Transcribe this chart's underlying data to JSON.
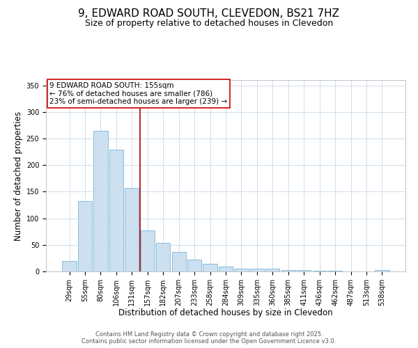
{
  "title": "9, EDWARD ROAD SOUTH, CLEVEDON, BS21 7HZ",
  "subtitle": "Size of property relative to detached houses in Clevedon",
  "xlabel": "Distribution of detached houses by size in Clevedon",
  "ylabel": "Number of detached properties",
  "bar_labels": [
    "29sqm",
    "55sqm",
    "80sqm",
    "106sqm",
    "131sqm",
    "157sqm",
    "182sqm",
    "207sqm",
    "233sqm",
    "258sqm",
    "284sqm",
    "309sqm",
    "335sqm",
    "360sqm",
    "385sqm",
    "411sqm",
    "436sqm",
    "462sqm",
    "487sqm",
    "513sqm",
    "538sqm"
  ],
  "bar_values": [
    20,
    132,
    265,
    229,
    157,
    77,
    54,
    37,
    22,
    14,
    9,
    5,
    5,
    5,
    3,
    2,
    1,
    1,
    0,
    0,
    2
  ],
  "bar_color": "#cce0f0",
  "bar_edge_color": "#7ab4d8",
  "vline_x": 5,
  "vline_color": "#aa0000",
  "ylim": [
    0,
    360
  ],
  "yticks": [
    0,
    50,
    100,
    150,
    200,
    250,
    300,
    350
  ],
  "annotation_text": "9 EDWARD ROAD SOUTH: 155sqm\n← 76% of detached houses are smaller (786)\n23% of semi-detached houses are larger (239) →",
  "annotation_box_color": "#ffffff",
  "annotation_box_edge": "#cc0000",
  "footer_line1": "Contains HM Land Registry data © Crown copyright and database right 2025.",
  "footer_line2": "Contains public sector information licensed under the Open Government Licence v3.0.",
  "bg_color": "#ffffff",
  "grid_color": "#c8d8e8",
  "title_fontsize": 11,
  "subtitle_fontsize": 9,
  "tick_fontsize": 7,
  "label_fontsize": 8.5,
  "footer_fontsize": 6,
  "ann_fontsize": 7.5
}
